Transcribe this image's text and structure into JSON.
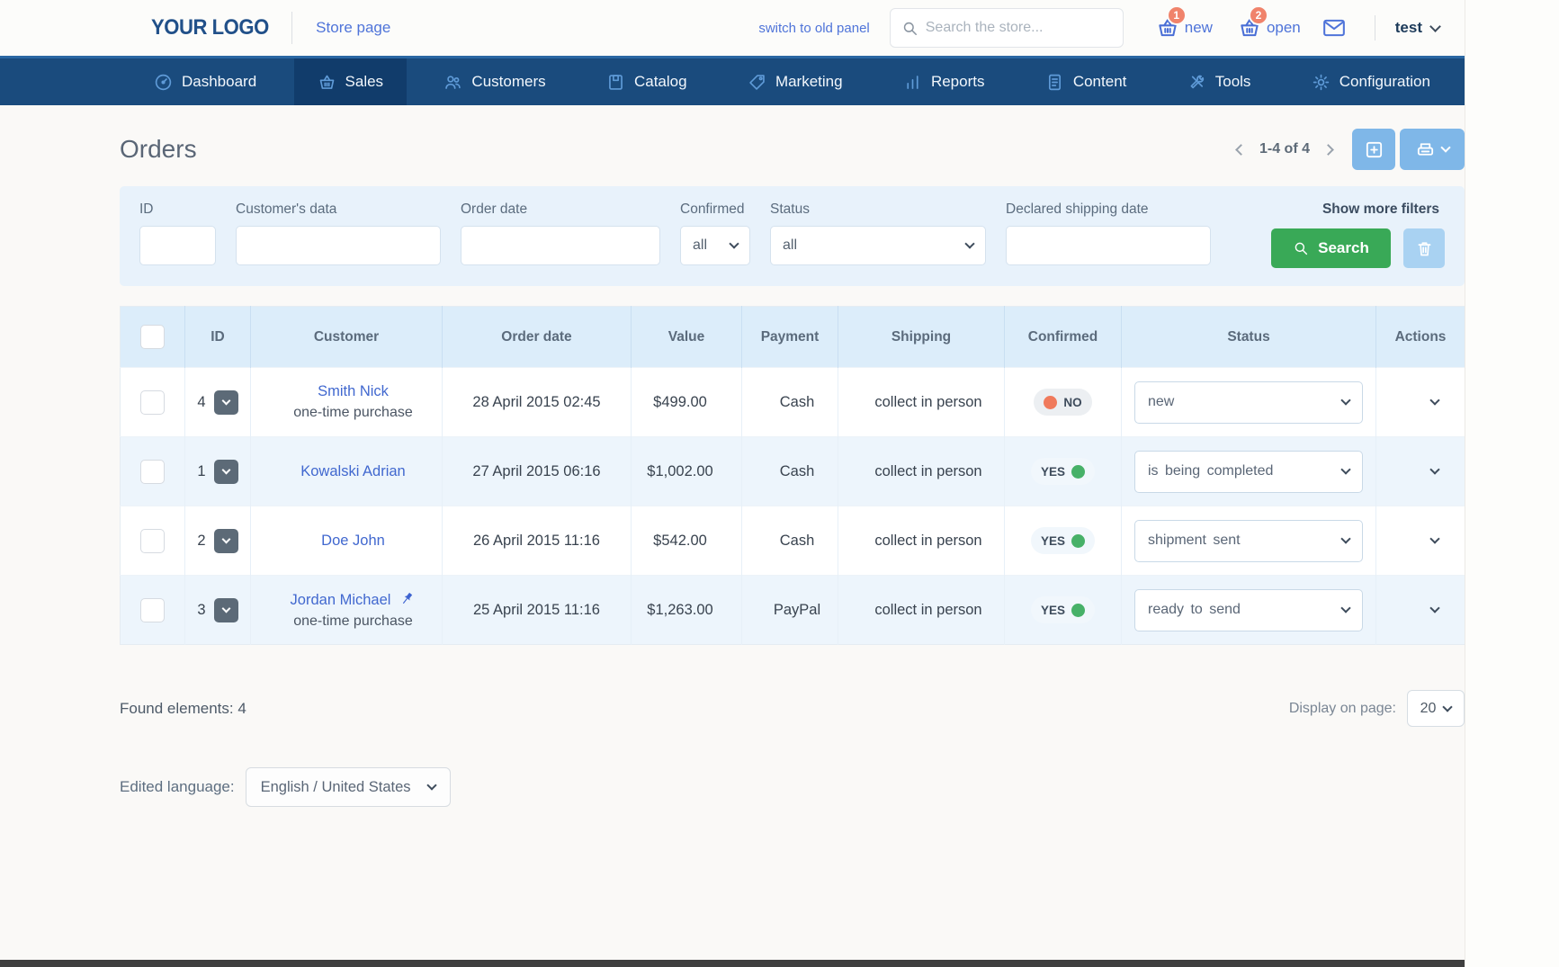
{
  "header": {
    "logo": "YOUR LOGO",
    "store_page_link": "Store page",
    "switch_link": "switch to old panel",
    "search_placeholder": "Search the store...",
    "cart_new": {
      "badge": "1",
      "label": "new"
    },
    "cart_open": {
      "badge": "2",
      "label": "open"
    },
    "user": "test"
  },
  "nav": {
    "active": "Sales",
    "items": [
      {
        "label": "Dashboard",
        "icon": "dashboard"
      },
      {
        "label": "Sales",
        "icon": "basket"
      },
      {
        "label": "Customers",
        "icon": "customers"
      },
      {
        "label": "Catalog",
        "icon": "catalog"
      },
      {
        "label": "Marketing",
        "icon": "tag"
      },
      {
        "label": "Reports",
        "icon": "reports"
      },
      {
        "label": "Content",
        "icon": "content"
      },
      {
        "label": "Tools",
        "icon": "tools"
      },
      {
        "label": "Configuration",
        "icon": "gear"
      }
    ]
  },
  "page": {
    "title": "Orders",
    "pagination": "1-4 of 4"
  },
  "filters": {
    "id_label": "ID",
    "customer_label": "Customer's data",
    "order_date_label": "Order date",
    "confirmed_label": "Confirmed",
    "confirmed_value": "all",
    "status_label": "Status",
    "status_value": "all",
    "shipping_date_label": "Declared shipping date",
    "show_more": "Show more filters",
    "search_label": "Search"
  },
  "table": {
    "columns": [
      "ID",
      "Customer",
      "Order date",
      "Value",
      "Payment",
      "Shipping",
      "Confirmed",
      "Status",
      "Actions"
    ],
    "rows": [
      {
        "id": "4",
        "customer": "Smith Nick",
        "sub": "one-time purchase",
        "pinned": false,
        "date": "28 April 2015 02:45",
        "value": "$499.00",
        "value_color": "red",
        "payment": "Cash",
        "shipping": "collect in person",
        "confirmed": "NO",
        "status": "new"
      },
      {
        "id": "1",
        "customer": "Kowalski Adrian",
        "sub": "",
        "pinned": false,
        "date": "27 April 2015 06:16",
        "value": "$1,002.00",
        "value_color": "green",
        "payment": "Cash",
        "shipping": "collect in person",
        "confirmed": "YES",
        "status": "is being completed"
      },
      {
        "id": "2",
        "customer": "Doe John",
        "sub": "",
        "pinned": false,
        "date": "26 April 2015 11:16",
        "value": "$542.00",
        "value_color": "tan",
        "payment": "Cash",
        "shipping": "collect in person",
        "confirmed": "YES",
        "status": "shipment sent"
      },
      {
        "id": "3",
        "customer": "Jordan Michael",
        "sub": "one-time purchase",
        "pinned": true,
        "date": "25 April 2015 11:16",
        "value": "$1,263.00",
        "value_color": "green",
        "payment": "PayPal",
        "shipping": "collect in person",
        "confirmed": "YES",
        "status": "ready to send"
      }
    ]
  },
  "footer": {
    "found_text": "Found elements: 4",
    "display_label": "Display on page:",
    "display_value": "20",
    "language_label": "Edited language:",
    "language_value": "English / United States"
  },
  "colors": {
    "nav_bg": "#1a4b7d",
    "nav_active_bg": "#113c6b",
    "accent_light_blue": "#7fb7e8",
    "search_green": "#39a957",
    "link_blue": "#4168cf",
    "badge_orange": "#f0836b",
    "value_red": "#ee6f5c",
    "value_green": "#4fae70",
    "value_tan": "#c7a05e"
  }
}
